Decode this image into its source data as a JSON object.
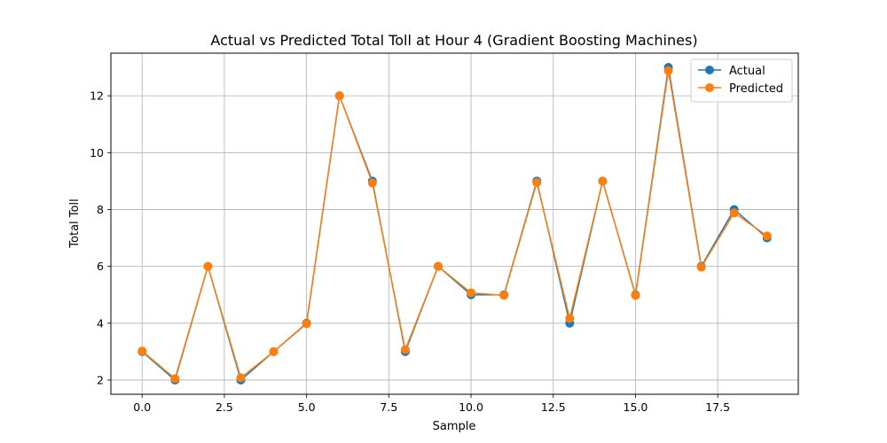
{
  "chart_data": {
    "type": "line",
    "title": "Actual vs Predicted Total Toll at Hour 4 (Gradient Boosting Machines)",
    "xlabel": "Sample",
    "ylabel": "Total Toll",
    "xlim": [
      -0.95,
      19.95
    ],
    "ylim": [
      1.5,
      13.5
    ],
    "xticks": [
      0.0,
      2.5,
      5.0,
      7.5,
      10.0,
      12.5,
      15.0,
      17.5
    ],
    "xtick_labels": [
      "0.0",
      "2.5",
      "5.0",
      "7.5",
      "10.0",
      "12.5",
      "15.0",
      "17.5"
    ],
    "yticks": [
      2,
      4,
      6,
      8,
      10,
      12
    ],
    "ytick_labels": [
      "2",
      "4",
      "6",
      "8",
      "10",
      "12"
    ],
    "grid": true,
    "legend_position": "top-right",
    "x": [
      0,
      1,
      2,
      3,
      4,
      5,
      6,
      7,
      8,
      9,
      10,
      11,
      12,
      13,
      14,
      15,
      16,
      17,
      18,
      19
    ],
    "series": [
      {
        "name": "Actual",
        "color": "#1f77b4",
        "values": [
          3,
          2,
          6,
          2,
          3,
          4,
          12,
          9,
          3,
          6,
          5,
          5,
          9,
          4,
          9,
          5,
          13,
          6,
          8,
          7
        ]
      },
      {
        "name": "Predicted",
        "color": "#ff7f0e",
        "values": [
          3.02,
          2.05,
          6.0,
          2.08,
          3.0,
          3.98,
          12.0,
          8.93,
          3.07,
          6.0,
          5.07,
          4.98,
          8.95,
          4.17,
          9.0,
          4.98,
          12.88,
          5.97,
          7.88,
          7.07
        ]
      }
    ]
  }
}
